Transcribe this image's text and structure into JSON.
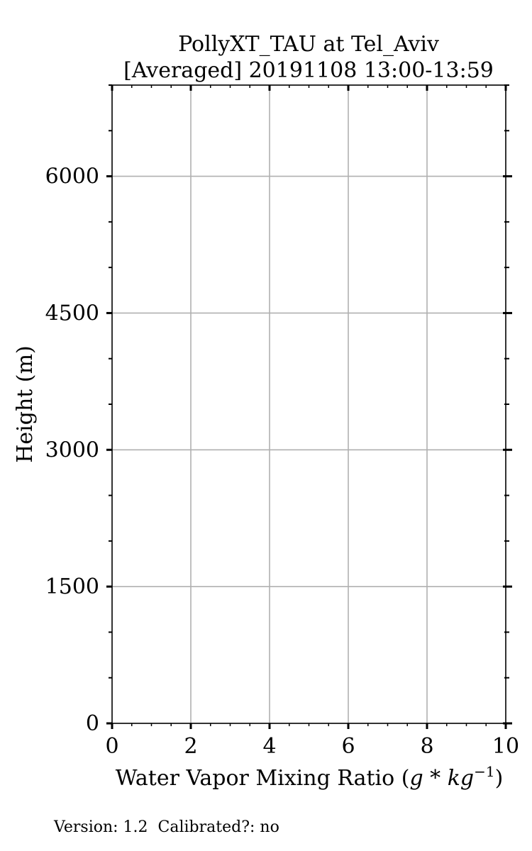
{
  "chart_data": {
    "type": "line",
    "title_line1": "PollyXT_TAU at Tel_Aviv",
    "title_line2": "[Averaged] 20191108 13:00-13:59",
    "xlabel_text": "Water Vapor Mixing Ratio (",
    "xlabel_unit": "g * kg",
    "xlabel_exp": "−1",
    "xlabel_close": ")",
    "ylabel": "Height (m)",
    "xlim": [
      0,
      10
    ],
    "ylim": [
      0,
      7000
    ],
    "x_ticks": [
      0,
      2,
      4,
      6,
      8,
      10
    ],
    "x_tick_labels": [
      "0",
      "2",
      "4",
      "6",
      "8",
      "10"
    ],
    "y_ticks": [
      0,
      1500,
      3000,
      4500,
      6000
    ],
    "y_tick_labels": [
      "0",
      "1500",
      "3000",
      "4500",
      "6000"
    ],
    "y_minor_step": 500,
    "x_minor_step": 0.5,
    "grid": true,
    "series": []
  },
  "footer": {
    "note": "Version: 1.2  Calibrated?: no"
  }
}
